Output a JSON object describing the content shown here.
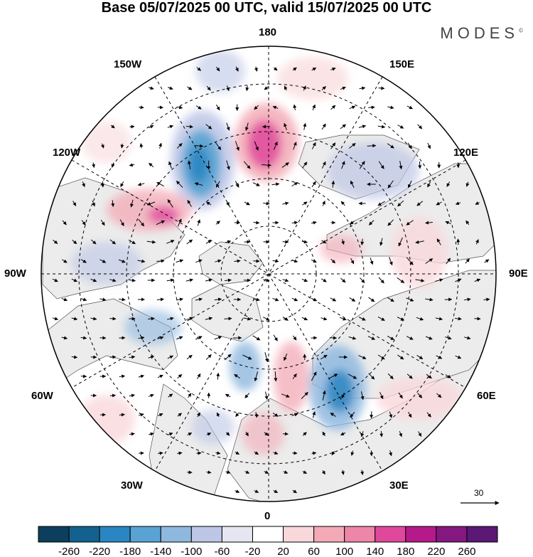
{
  "title": "Base 05/07/2025 00 UTC, valid 15/07/2025 00 UTC",
  "brand": {
    "name": "MODES",
    "mark": "©"
  },
  "map_labels": {
    "lon_180": "180",
    "lon_150W": "150W",
    "lon_150E": "150E",
    "lon_120W": "120W",
    "lon_120E": "120E",
    "lon_90W": "90W",
    "lon_90E": "90E",
    "lon_60W": "60W",
    "lon_60E": "60E",
    "lon_30W": "30W",
    "lon_30E": "30E",
    "lon_0": "0"
  },
  "vector_scale": {
    "value": "30"
  },
  "colorbar": {
    "ticks": [
      "-260",
      "-220",
      "-180",
      "-140",
      "-100",
      "-60",
      "-20",
      "20",
      "60",
      "100",
      "140",
      "180",
      "220",
      "260"
    ],
    "colors": [
      "#0d3f5c",
      "#13618f",
      "#2a86c2",
      "#58a3d3",
      "#8fb8df",
      "#bdc6e6",
      "#e6e6f2",
      "#ffffff",
      "#f9d8dc",
      "#f3aab6",
      "#ee86a9",
      "#e0489c",
      "#b6198a",
      "#851880",
      "#5b1875"
    ]
  },
  "colors": {
    "land": "#ececec",
    "ocean": "#ffffff",
    "border": "#000000"
  }
}
